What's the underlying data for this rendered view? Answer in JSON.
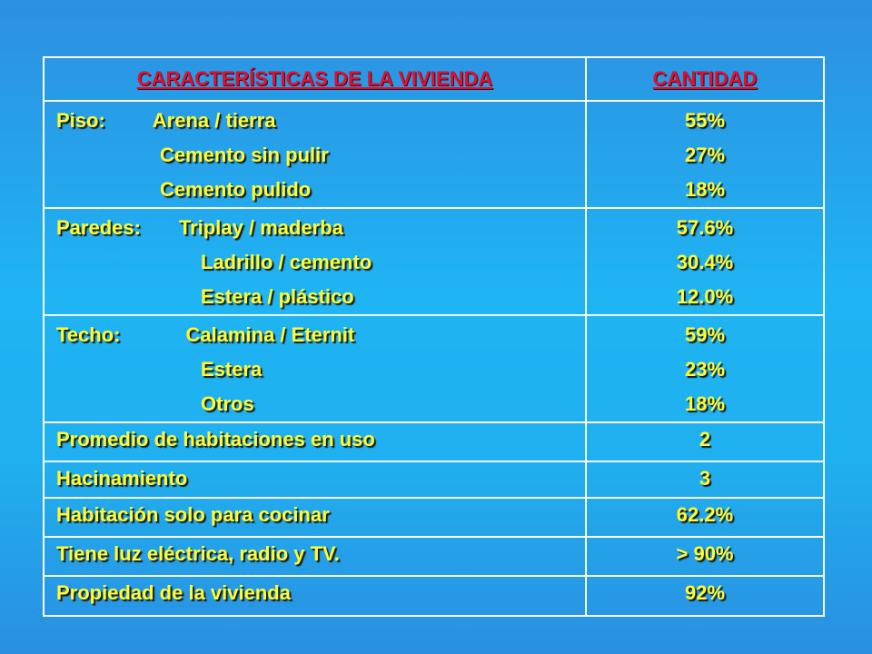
{
  "header": {
    "col1": "CARACTERÍSTICAS DE LA VIVIENDA",
    "col2": "CANTIDAD"
  },
  "rows": [
    {
      "category": "Piso:",
      "items": [
        "Arena / tierra",
        "Cemento sin pulir",
        "Cemento pulido"
      ],
      "values": [
        "55%",
        "27%",
        "18%"
      ]
    },
    {
      "category": "Paredes:",
      "items": [
        "Triplay / maderba",
        "Ladrillo / cemento",
        "Estera / plástico"
      ],
      "values": [
        "57.6%",
        "30.4%",
        "12.0%"
      ]
    },
    {
      "category": "Techo:",
      "items": [
        "Calamina / Eternit",
        "Estera",
        "Otros"
      ],
      "values": [
        "59%",
        "23%",
        "18%"
      ]
    },
    {
      "label": "Promedio de habitaciones en uso",
      "value": "2"
    },
    {
      "label": "Hacinamiento",
      "value": "3"
    },
    {
      "label": "Habitación solo para cocinar",
      "value": "62.2%"
    },
    {
      "label": "Tiene luz eléctrica, radio y TV.",
      "value": "> 90%"
    },
    {
      "label": "Propiedad de la vivienda",
      "value": "92%"
    }
  ],
  "colors": {
    "background": "#1fb4f3",
    "text": "#ffff33",
    "header_text": "#dd1133",
    "border": "#ffffff"
  }
}
